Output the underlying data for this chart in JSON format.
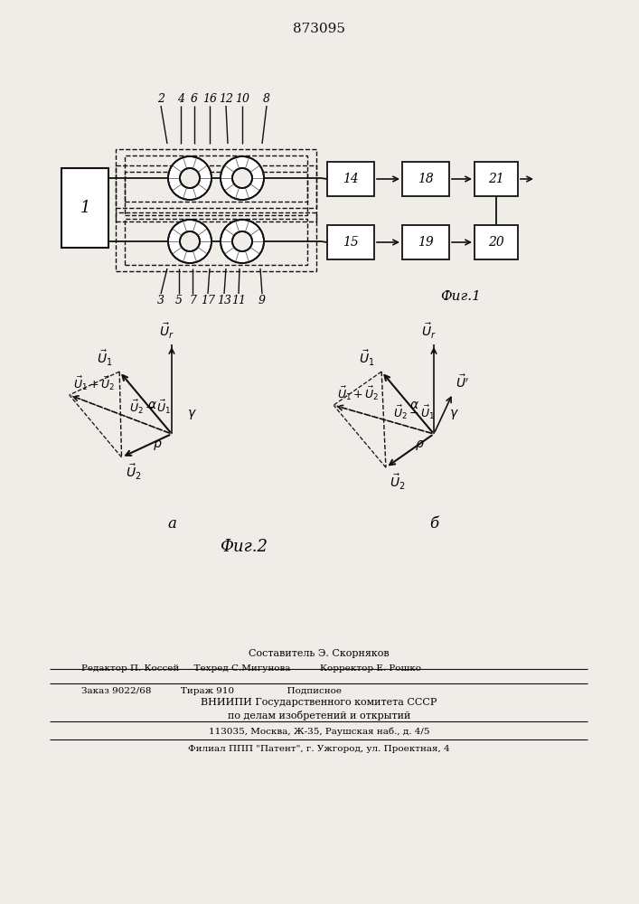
{
  "patent_number": "873095",
  "bg_color": "#f0ede8",
  "fig1_label": "Фиг.1",
  "fig2_label": "Фиг.2",
  "sub_a_label": "а",
  "sub_b_label": "б",
  "footer_lines": [
    "Составитель Э. Скорняков",
    "Редактор П. Коссей     Техред С.Мигунова          Корректор Е. Рошко",
    "Заказ 9022/68          Тираж 910                  Подписное",
    "ВНИИПИ Государственного комитета СССР",
    "по делам изобретений и открытий",
    "113035, Москва, Ж-35, Раушская наб., д. 4/5",
    "Филиал ППП \"Патент\", г. Ужгород, ул. Проектная, 4"
  ]
}
